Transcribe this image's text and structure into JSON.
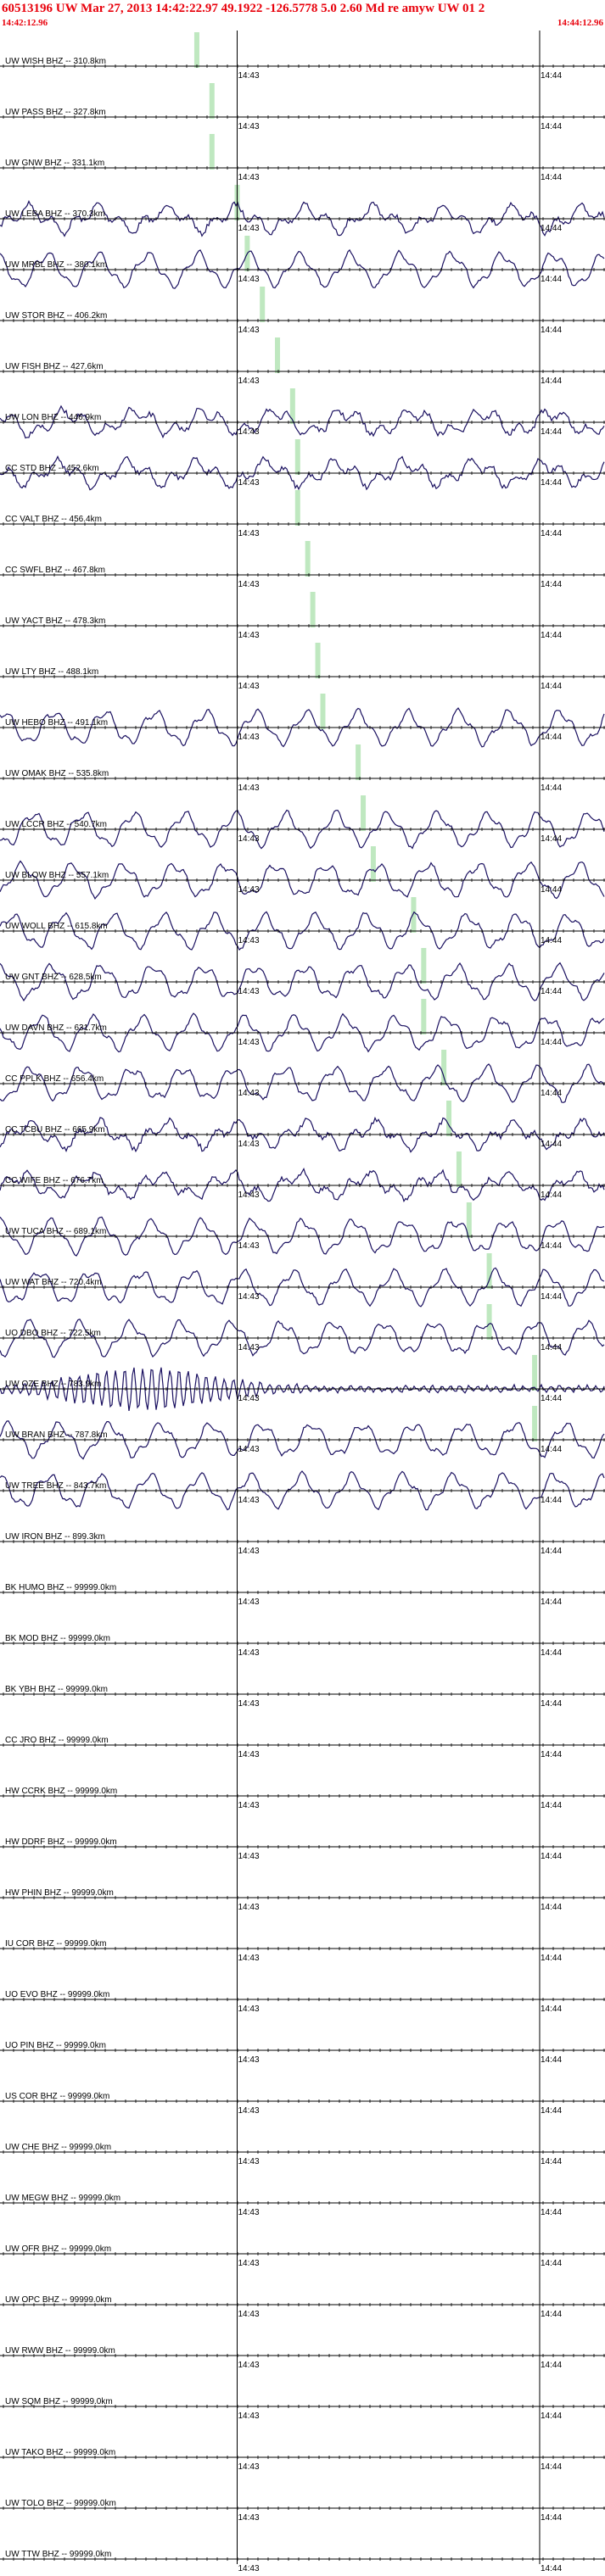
{
  "header": {
    "title": "60513196 UW Mar 27, 2013 14:42:22.97   49.1922 -126.5778  5.0 2.60 Md re amyw UW 01   2",
    "start_time": "14:42:12.96",
    "end_time": "14:44:12.96"
  },
  "colors": {
    "header_text": "#e8000b",
    "trace": "#1a1060",
    "pick": "#bfe8c0",
    "axis": "#000000"
  },
  "chart_data": {
    "type": "line",
    "x_unit": "time",
    "x_range": [
      "14:42:12.96",
      "14:44:12.96"
    ],
    "tick_labels": [
      "14:43",
      "14:44"
    ],
    "channels": [
      {
        "label": "UW WISH BHZ -- 310.8km",
        "pick": "14:42:52",
        "signal": "flat"
      },
      {
        "label": "UW PASS BHZ -- 327.8km",
        "pick": "14:42:55",
        "signal": "flat"
      },
      {
        "label": "UW GNW BHZ -- 331.1km",
        "pick": "14:42:55",
        "signal": "flat"
      },
      {
        "label": "UW LEBA BHZ -- 370.3km",
        "pick": "14:43:00",
        "signal": "noise"
      },
      {
        "label": "UW MRBL BHZ -- 380.1km",
        "pick": "14:43:02",
        "signal": "wave"
      },
      {
        "label": "UW STOR BHZ -- 406.2km",
        "pick": "14:43:05",
        "signal": "flat"
      },
      {
        "label": "UW FISH BHZ -- 427.6km",
        "pick": "14:43:08",
        "signal": "flat"
      },
      {
        "label": "UW LON BHZ -- 446.9km",
        "pick": "14:43:11",
        "signal": "noise"
      },
      {
        "label": "CC STD BHZ -- 452.6km",
        "pick": "14:43:12",
        "signal": "noise"
      },
      {
        "label": "CC VALT BHZ -- 456.4km",
        "pick": "14:43:12",
        "signal": "flat"
      },
      {
        "label": "CC SWFL BHZ -- 467.8km",
        "pick": "14:43:14",
        "signal": "flat"
      },
      {
        "label": "UW YACT BHZ -- 478.3km",
        "pick": "14:43:15",
        "signal": "flat"
      },
      {
        "label": "UW LTY BHZ -- 488.1km",
        "pick": "14:43:16",
        "signal": "flat"
      },
      {
        "label": "UW HEBO BHZ -- 491.1km",
        "pick": "14:43:17",
        "signal": "wave"
      },
      {
        "label": "UW OMAK BHZ -- 535.8km",
        "pick": "14:43:24",
        "signal": "flat"
      },
      {
        "label": "UW LCCR BHZ -- 540.7km",
        "pick": "14:43:25",
        "signal": "wave"
      },
      {
        "label": "UW BLOW BHZ -- 557.1km",
        "pick": "14:43:27",
        "signal": "wave"
      },
      {
        "label": "UW WOLL BHZ -- 615.8km",
        "pick": "14:43:35",
        "signal": "wave"
      },
      {
        "label": "UW GNT BHZ -- 628.5km",
        "pick": "14:43:37",
        "signal": "wave"
      },
      {
        "label": "UW DAVN BHZ -- 631.7km",
        "pick": "14:43:37",
        "signal": "wave"
      },
      {
        "label": "CC PPLK BHZ -- 656.4km",
        "pick": "14:43:41",
        "signal": "wave"
      },
      {
        "label": "CC TCBU BHZ -- 665.9km",
        "pick": "14:43:42",
        "signal": "noise"
      },
      {
        "label": "CC WIFE BHZ -- 676.7km",
        "pick": "14:43:44",
        "signal": "noise"
      },
      {
        "label": "UW TUCA BHZ -- 689.1km",
        "pick": "14:43:46",
        "signal": "wave"
      },
      {
        "label": "UW WAT BHZ -- 720.4km",
        "pick": "14:43:50",
        "signal": "wave"
      },
      {
        "label": "UO DBO BHZ -- 722.5km",
        "pick": "14:43:50",
        "signal": "wave"
      },
      {
        "label": "UW OZE BHZ -- 783.9km",
        "pick": "14:43:59",
        "signal": "burst"
      },
      {
        "label": "UW BRAN BHZ -- 787.8km",
        "pick": "14:43:59",
        "signal": "wave"
      },
      {
        "label": "UW TREE BHZ -- 843.7km",
        "pick": "",
        "signal": "wave"
      },
      {
        "label": "UW IRON BHZ -- 899.3km",
        "pick": "",
        "signal": "flat"
      },
      {
        "label": "BK HUMO BHZ -- 99999.0km",
        "pick": "",
        "signal": "flat"
      },
      {
        "label": "BK MOD BHZ -- 99999.0km",
        "pick": "",
        "signal": "flat"
      },
      {
        "label": "BK YBH BHZ -- 99999.0km",
        "pick": "",
        "signal": "flat"
      },
      {
        "label": "CC JRO BHZ -- 99999.0km",
        "pick": "",
        "signal": "flat"
      },
      {
        "label": "HW CCRK BHZ -- 99999.0km",
        "pick": "",
        "signal": "flat"
      },
      {
        "label": "HW DDRF BHZ -- 99999.0km",
        "pick": "",
        "signal": "flat"
      },
      {
        "label": "HW PHIN BHZ -- 99999.0km",
        "pick": "",
        "signal": "flat"
      },
      {
        "label": "IU COR BHZ -- 99999.0km",
        "pick": "",
        "signal": "flat"
      },
      {
        "label": "UO EVO BHZ -- 99999.0km",
        "pick": "",
        "signal": "flat"
      },
      {
        "label": "UO PIN BHZ -- 99999.0km",
        "pick": "",
        "signal": "flat"
      },
      {
        "label": "US COR BHZ -- 99999.0km",
        "pick": "",
        "signal": "flat"
      },
      {
        "label": "UW CHE BHZ -- 99999.0km",
        "pick": "",
        "signal": "flat"
      },
      {
        "label": "UW MEGW BHZ -- 99999.0km",
        "pick": "",
        "signal": "flat"
      },
      {
        "label": "UW OFR BHZ -- 99999.0km",
        "pick": "",
        "signal": "flat"
      },
      {
        "label": "UW OPC BHZ -- 99999.0km",
        "pick": "",
        "signal": "flat"
      },
      {
        "label": "UW RWW BHZ -- 99999.0km",
        "pick": "",
        "signal": "flat"
      },
      {
        "label": "UW SQM BHZ -- 99999.0km",
        "pick": "",
        "signal": "flat"
      },
      {
        "label": "UW TAKO BHZ -- 99999.0km",
        "pick": "",
        "signal": "flat"
      },
      {
        "label": "UW TOLO BHZ -- 99999.0km",
        "pick": "",
        "signal": "flat"
      },
      {
        "label": "UW TTW BHZ -- 99999.0km",
        "pick": "",
        "signal": "flat"
      }
    ]
  }
}
